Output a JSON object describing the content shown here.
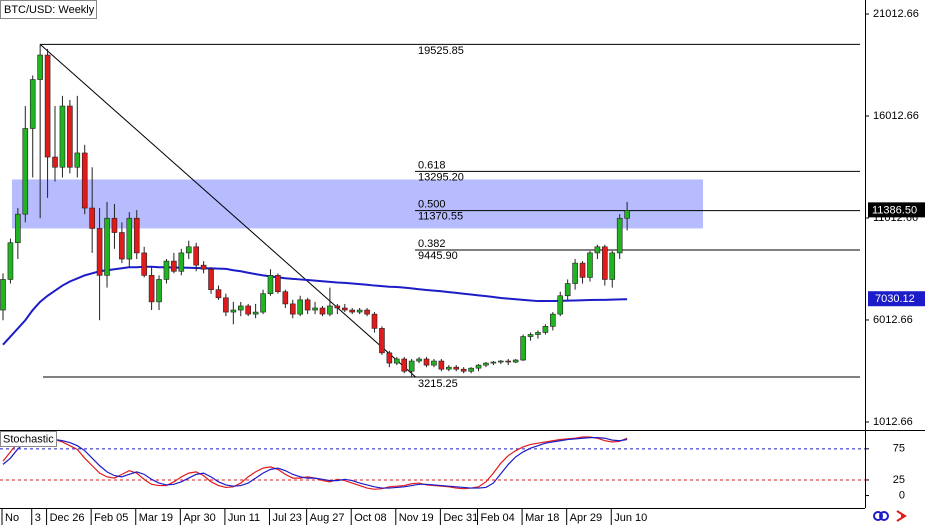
{
  "chart_data": {
    "type": "candlestick",
    "title": "BTC/USD: Weekly",
    "categories": [
      "No",
      null,
      null,
      null,
      "3",
      null,
      "Dec 26",
      null,
      null,
      null,
      null,
      null,
      "Feb 05",
      null,
      null,
      null,
      null,
      null,
      "Mar 19",
      null,
      null,
      null,
      null,
      null,
      "Apr 30",
      null,
      null,
      null,
      null,
      null,
      "Jun 11",
      null,
      null,
      null,
      null,
      null,
      "Jul 23",
      null,
      null,
      null,
      null,
      "Aug 27",
      null,
      null,
      null,
      null,
      null,
      "Oct 08",
      null,
      null,
      null,
      null,
      null,
      "Nov 19",
      null,
      null,
      null,
      null,
      null,
      "Dec 31",
      null,
      null,
      null,
      null,
      "Feb 04",
      null,
      null,
      null,
      null,
      null,
      "Mar 18",
      null,
      null,
      null,
      null,
      null,
      "Apr 29",
      null,
      null,
      null,
      null,
      null,
      "Jun 10",
      null,
      null
    ],
    "open": [
      6500,
      8000,
      9800,
      11200,
      15400,
      17800,
      19000,
      14000,
      13500,
      16500,
      13500,
      14200,
      11500,
      10500,
      8200,
      11000,
      10300,
      9000,
      11000,
      9300,
      8200,
      6900,
      8000,
      8900,
      8400,
      9300,
      9600,
      8700,
      8500,
      7500,
      7100,
      6400,
      6500,
      6700,
      6300,
      6400,
      7300,
      8200,
      7400,
      6800,
      6300,
      7000,
      6500,
      6600,
      6300,
      6700,
      6600,
      6500,
      6400,
      6500,
      6300,
      5600,
      4400,
      3900,
      4100,
      3500,
      4000,
      4100,
      3800,
      4000,
      3600,
      3700,
      3600,
      3500,
      3650,
      3800,
      3900,
      3950,
      4000,
      3950,
      4050,
      5200,
      5300,
      5400,
      5700,
      6300,
      7200,
      7800,
      8800,
      8100,
      9300,
      9600,
      8000,
      9300,
      11000
    ],
    "high": [
      8300,
      10000,
      11500,
      16500,
      18000,
      19525.85,
      19300,
      16500,
      17000,
      16800,
      17000,
      14600,
      13500,
      11500,
      11800,
      11700,
      10800,
      11300,
      11400,
      9600,
      8600,
      8200,
      9000,
      9300,
      9500,
      9900,
      9800,
      8900,
      8600,
      7700,
      7300,
      6900,
      6900,
      6800,
      6800,
      7500,
      8500,
      8300,
      7500,
      7000,
      7200,
      7100,
      6900,
      6700,
      7600,
      6800,
      6800,
      6600,
      6600,
      6600,
      6400,
      5700,
      4500,
      4200,
      4200,
      4100,
      4200,
      4200,
      4100,
      4100,
      3800,
      3800,
      3700,
      3700,
      3850,
      3950,
      4000,
      4050,
      4100,
      4100,
      5300,
      5400,
      5500,
      5800,
      6400,
      7400,
      8000,
      9000,
      8900,
      9400,
      9700,
      9700,
      9400,
      11200,
      11800
    ],
    "low": [
      6000,
      7800,
      9000,
      10800,
      13000,
      11000,
      12000,
      12800,
      13000,
      13200,
      13000,
      11200,
      9300,
      6000,
      7600,
      9500,
      8800,
      8600,
      9000,
      8100,
      6500,
      6500,
      7800,
      8300,
      8200,
      9000,
      8400,
      8300,
      7300,
      7000,
      6200,
      5800,
      6200,
      6200,
      6100,
      6300,
      7200,
      7300,
      6600,
      6100,
      6200,
      6300,
      6300,
      6200,
      6200,
      6300,
      6400,
      6300,
      6300,
      6200,
      5400,
      4300,
      3700,
      3800,
      3400,
      3215.25,
      3900,
      3700,
      3700,
      3500,
      3500,
      3500,
      3400,
      3400,
      3500,
      3700,
      3800,
      3850,
      3800,
      3900,
      4000,
      5000,
      5100,
      5300,
      5500,
      6200,
      7000,
      7500,
      7800,
      7900,
      9000,
      7700,
      7600,
      9000,
      10400
    ],
    "close": [
      8000,
      9800,
      11200,
      15400,
      17800,
      19000,
      14000,
      13500,
      16500,
      13500,
      14200,
      11500,
      10500,
      8200,
      11000,
      10300,
      9000,
      11000,
      9300,
      8200,
      6900,
      8000,
      8900,
      8400,
      9300,
      9600,
      8700,
      8500,
      7500,
      7100,
      6400,
      6500,
      6700,
      6300,
      6400,
      7300,
      8200,
      7400,
      6800,
      6300,
      7000,
      6500,
      6600,
      6300,
      6700,
      6600,
      6500,
      6400,
      6500,
      6300,
      5600,
      4400,
      3900,
      4100,
      3500,
      4000,
      4100,
      3800,
      4000,
      3600,
      3700,
      3600,
      3500,
      3650,
      3800,
      3900,
      3950,
      4000,
      3950,
      4050,
      5200,
      5300,
      5400,
      5700,
      6300,
      7200,
      7800,
      8800,
      8100,
      9300,
      9600,
      8000,
      9300,
      11000,
      11386.5
    ],
    "up_color": "#22b322",
    "down_color": "#e01b1b",
    "ma": {
      "color": "#1c1cc8",
      "values": [
        4800,
        5200,
        5600,
        6000,
        6500,
        6900,
        7200,
        7450,
        7700,
        7900,
        8050,
        8200,
        8300,
        8400,
        8450,
        8500,
        8550,
        8600,
        8600,
        8620,
        8620,
        8600,
        8600,
        8580,
        8580,
        8570,
        8560,
        8550,
        8540,
        8530,
        8520,
        8450,
        8400,
        8330,
        8260,
        8200,
        8150,
        8100,
        8060,
        8030,
        8000,
        7970,
        7940,
        7910,
        7880,
        7850,
        7830,
        7800,
        7770,
        7740,
        7700,
        7670,
        7640,
        7630,
        7600,
        7560,
        7520,
        7480,
        7450,
        7420,
        7380,
        7340,
        7300,
        7260,
        7220,
        7180,
        7140,
        7090,
        7060,
        7030,
        7000,
        6970,
        6940,
        6940,
        6940,
        6950,
        6960,
        6970,
        6980,
        6990,
        7000,
        7000,
        7010,
        7020,
        7030.12
      ]
    },
    "last_price": {
      "value": 11386.5,
      "label": "11386.50"
    },
    "zone": [
      10500,
      12900
    ],
    "zone_color": "#aab0ff",
    "swing_high": 19525.85,
    "swing_low": 3215.25,
    "fib_levels": [
      {
        "name": "0.618",
        "value": 13295.2,
        "label": "13295.20"
      },
      {
        "name": "0.500",
        "value": 11370.55
      },
      {
        "name": "0.382",
        "value": 9445.9,
        "label": "9445.90"
      }
    ],
    "ylim": [
      619,
      21699
    ],
    "yticks": [
      21012.66,
      16012.66,
      11012.66,
      6012.66,
      1012.66
    ],
    "stochastic": {
      "title": "Stochastic",
      "ylim": [
        -20,
        102
      ],
      "yticks": [
        75,
        25,
        0
      ],
      "levels": [
        {
          "value": 75,
          "color": "#1c1cc8"
        },
        {
          "value": 25,
          "color": "#e01b1b"
        }
      ],
      "series": [
        {
          "color": "#e01b1b",
          "values": [
            55,
            70,
            85,
            92,
            95,
            94,
            92,
            90,
            86,
            80,
            74,
            60,
            48,
            36,
            30,
            28,
            34,
            40,
            36,
            26,
            18,
            16,
            16,
            22,
            30,
            36,
            38,
            32,
            22,
            16,
            13,
            14,
            20,
            30,
            38,
            44,
            46,
            42,
            34,
            28,
            28,
            30,
            28,
            24,
            22,
            26,
            24,
            20,
            16,
            12,
            10,
            11,
            14,
            15,
            16,
            19,
            20,
            17,
            16,
            15,
            14,
            12,
            11,
            12,
            14,
            22,
            36,
            52,
            64,
            72,
            78,
            82,
            84,
            86,
            88,
            90,
            91,
            92,
            94,
            94,
            92,
            88,
            86,
            87,
            92
          ]
        },
        {
          "color": "#1c1cc8",
          "values": [
            50,
            60,
            75,
            85,
            90,
            92,
            92,
            90,
            88,
            85,
            80,
            72,
            60,
            48,
            38,
            32,
            30,
            34,
            38,
            34,
            26,
            20,
            17,
            18,
            22,
            28,
            34,
            36,
            30,
            22,
            17,
            15,
            16,
            20,
            28,
            36,
            42,
            44,
            40,
            34,
            30,
            28,
            28,
            26,
            24,
            24,
            26,
            24,
            20,
            17,
            14,
            12,
            12,
            13,
            14,
            16,
            18,
            18,
            17,
            16,
            15,
            14,
            13,
            12,
            12,
            13,
            20,
            35,
            50,
            62,
            70,
            76,
            80,
            84,
            86,
            88,
            90,
            91,
            92,
            93,
            93,
            92,
            89,
            88,
            90
          ]
        }
      ]
    }
  }
}
